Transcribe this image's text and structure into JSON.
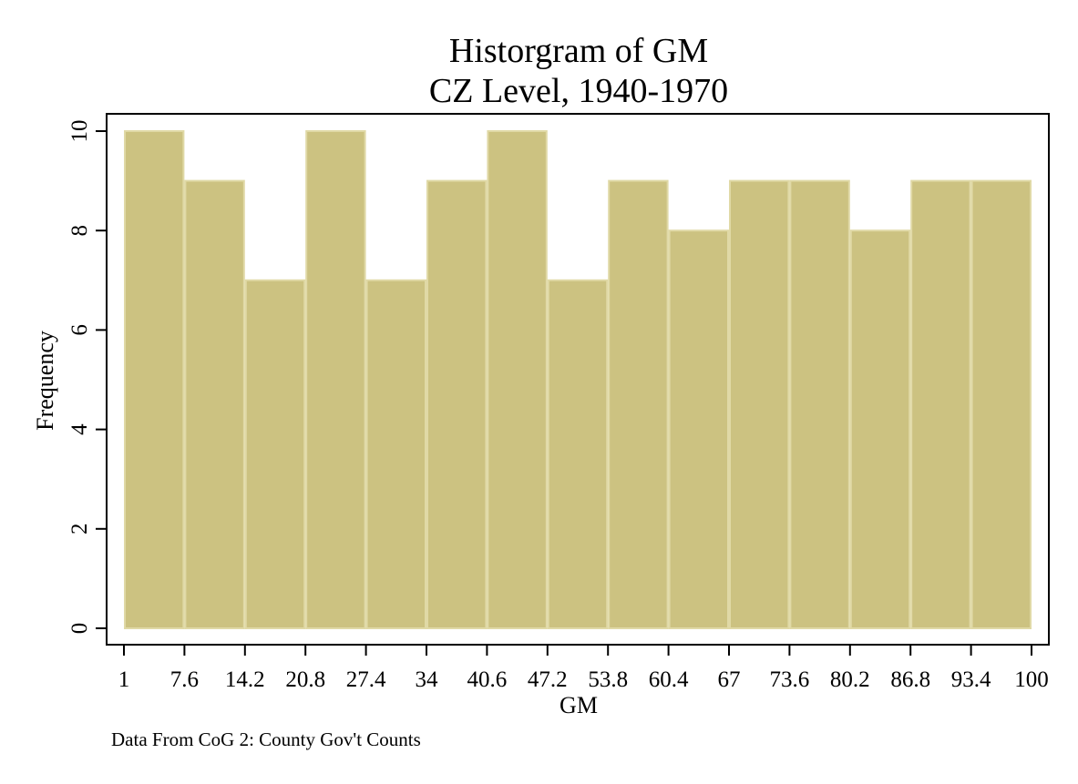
{
  "chart_data": {
    "type": "bar",
    "title": "Historgram of GM",
    "subtitle": "CZ Level, 1940-1970",
    "xlabel": "GM",
    "ylabel": "Frequency",
    "note": "Data From CoG 2: County Gov't Counts",
    "bin_edges": [
      1,
      7.6,
      14.2,
      20.8,
      27.4,
      34,
      40.6,
      47.2,
      53.8,
      60.4,
      67,
      73.6,
      80.2,
      86.8,
      93.4,
      100
    ],
    "values": [
      10,
      9,
      7,
      10,
      7,
      9,
      10,
      7,
      9,
      8,
      9,
      9,
      8,
      9,
      9
    ],
    "xticks": [
      "1",
      "7.6",
      "14.2",
      "20.8",
      "27.4",
      "34",
      "40.6",
      "47.2",
      "53.8",
      "60.4",
      "67",
      "73.6",
      "80.2",
      "86.8",
      "93.4",
      "100"
    ],
    "yticks": [
      0,
      2,
      4,
      6,
      8,
      10
    ],
    "xlim": [
      1,
      100
    ],
    "ylim": [
      0,
      10
    ],
    "bar_color": "#ccc281",
    "bar_edge_color": "#e0d9a6",
    "grid": false
  }
}
